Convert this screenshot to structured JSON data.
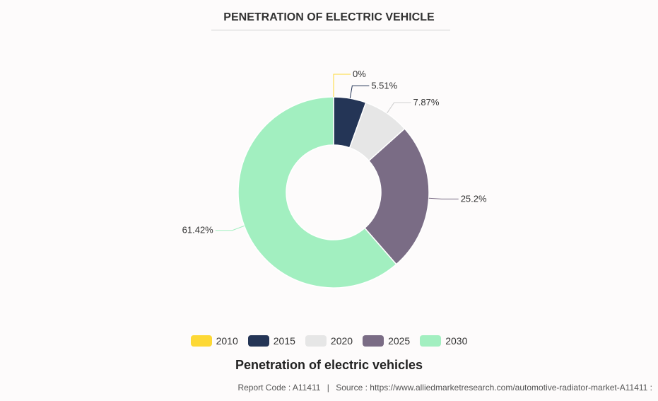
{
  "chart_data": {
    "type": "pie",
    "title": "PENETRATION OF ELECTRIC VEHICLE",
    "donut": true,
    "legend_position": "bottom",
    "categories": [
      "2010",
      "2015",
      "2020",
      "2025",
      "2030"
    ],
    "values": [
      0,
      5.51,
      7.87,
      25.2,
      61.42
    ],
    "labels": [
      "0%",
      "5.51%",
      "7.87%",
      "25.2%",
      "61.42%"
    ],
    "colors": [
      "#fdd835",
      "#243556",
      "#e6e6e6",
      "#7a6c85",
      "#a2efc0"
    ]
  },
  "caption": "Penetration of electric vehicles",
  "footer": {
    "report_code": "Report Code : A11411",
    "source": "Source : https://www.alliedmarketresearch.com/automotive-radiator-market-A11411 :"
  }
}
